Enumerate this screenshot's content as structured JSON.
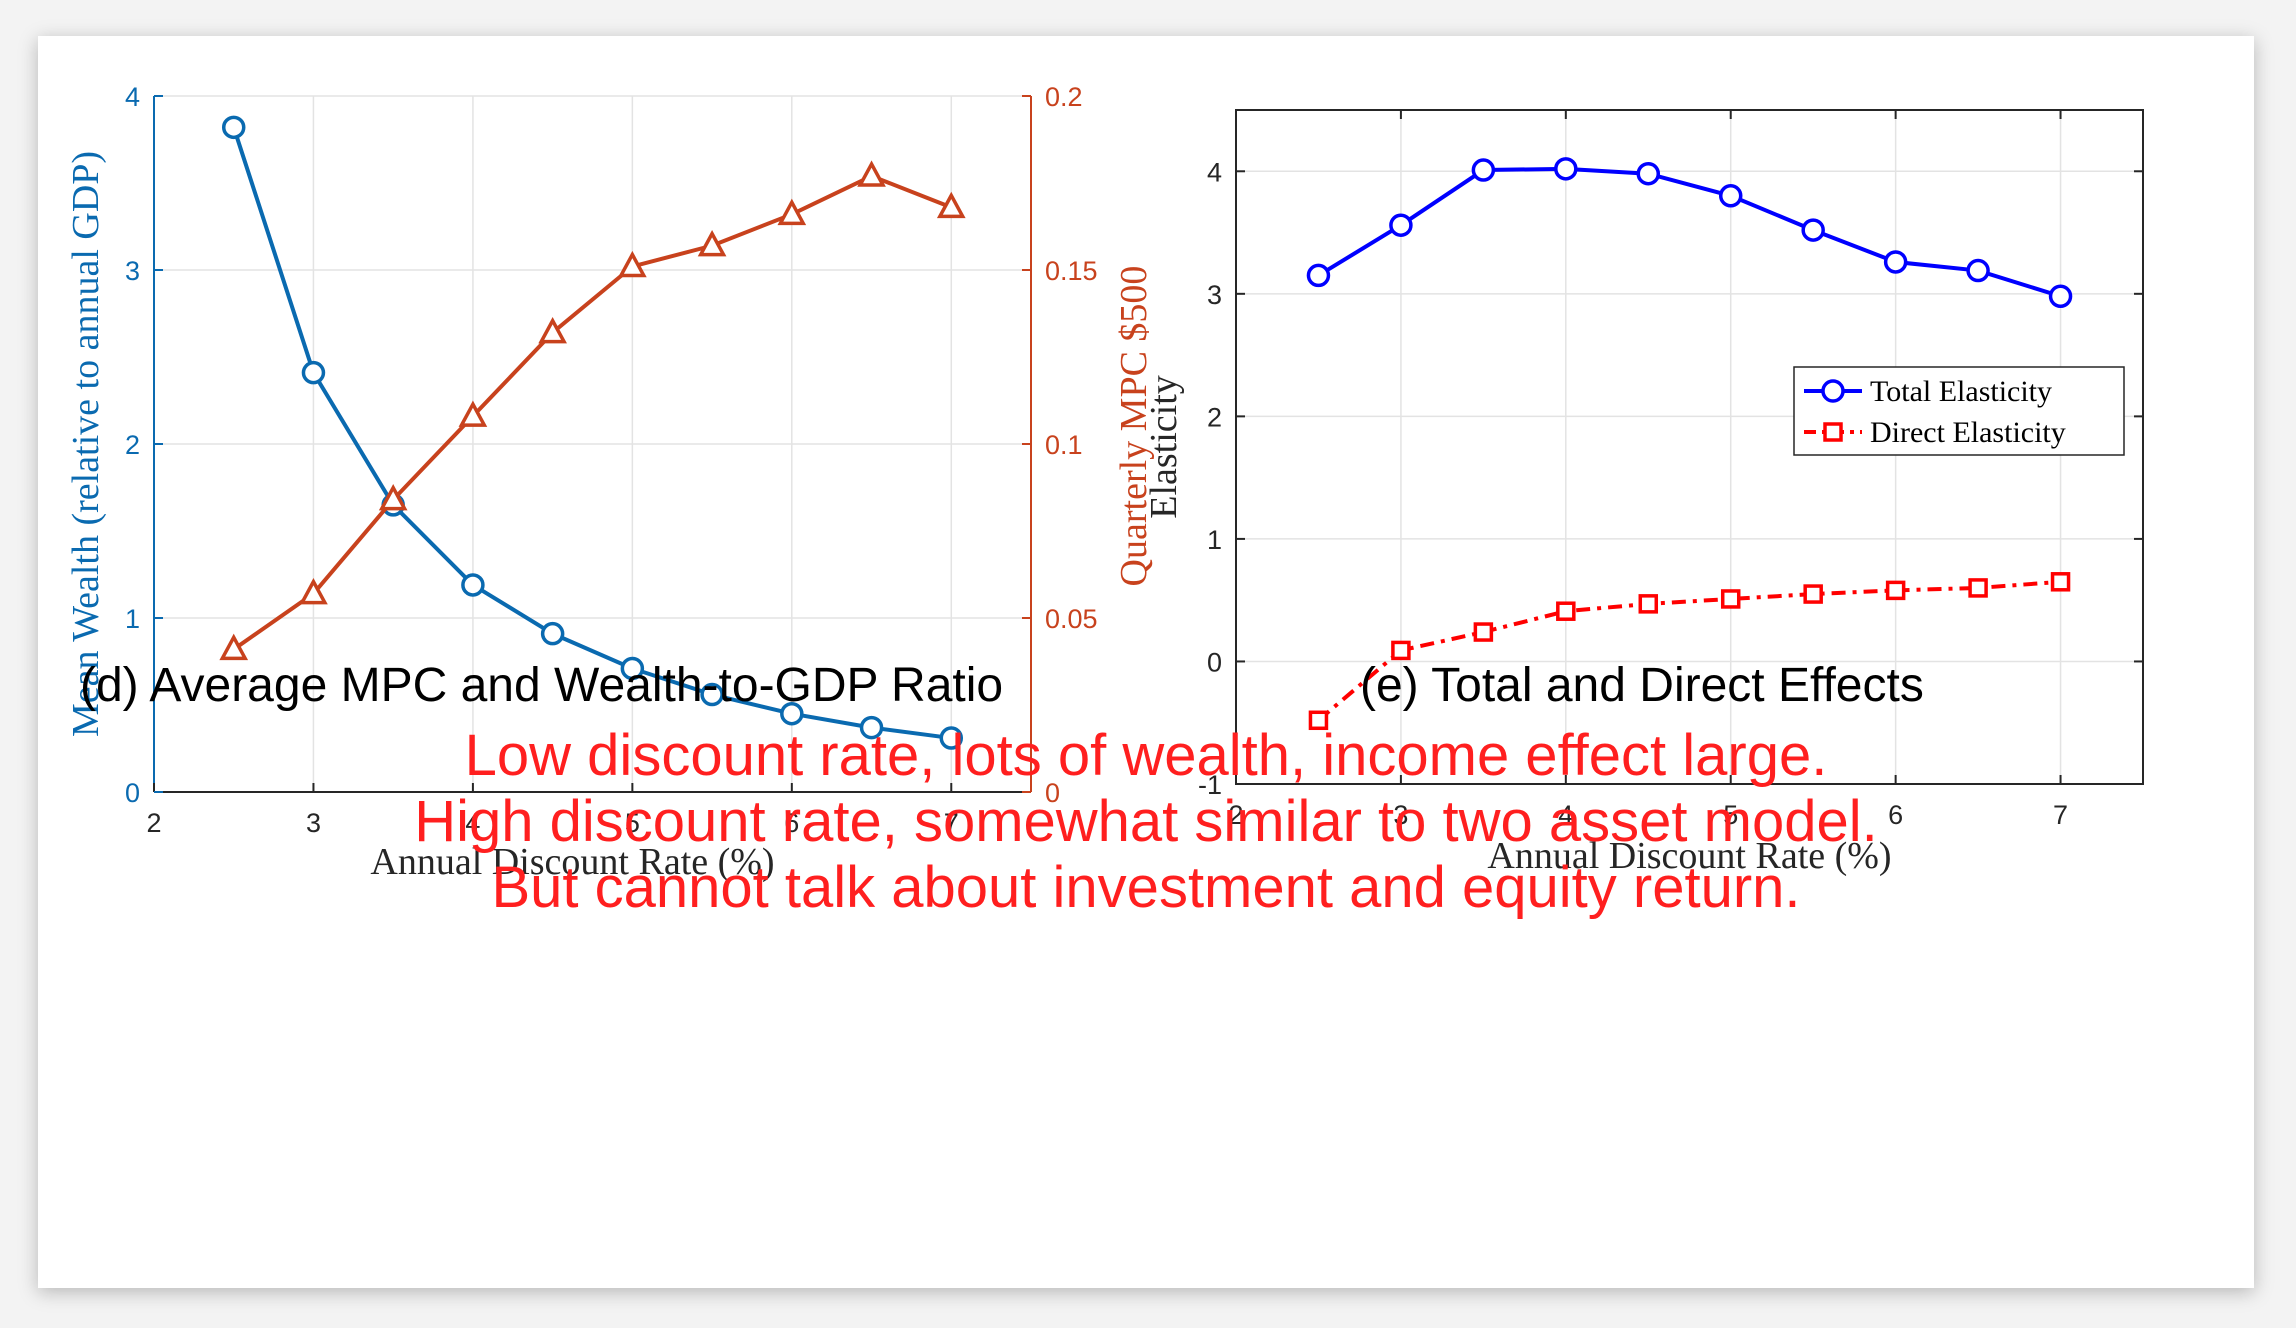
{
  "chart_data": [
    {
      "type": "line",
      "xlabel": "Annual Discount Rate (%)",
      "ylabel_left": "Mean Wealth (relative to annual GDP)",
      "ylabel_right": "Quarterly MPC $500",
      "xlim": [
        2,
        7.5
      ],
      "ylim_left": [
        0,
        4
      ],
      "ylim_right": [
        0,
        0.2
      ],
      "xticks": [
        "2",
        "3",
        "4",
        "5",
        "6",
        "7"
      ],
      "yticks_left": [
        "0",
        "1",
        "2",
        "3",
        "4"
      ],
      "yticks_right": [
        "0",
        "0.05",
        "0.1",
        "0.15",
        "0.2"
      ],
      "grid": true,
      "x": [
        2.5,
        3,
        3.5,
        4,
        4.5,
        5,
        5.5,
        6,
        6.5,
        7
      ],
      "series": [
        {
          "axis": "left",
          "marker": "circle",
          "color": "#0a6ab0",
          "values": [
            3.82,
            2.41,
            1.65,
            1.19,
            0.91,
            0.71,
            0.56,
            0.45,
            0.37,
            0.31
          ]
        },
        {
          "axis": "right",
          "marker": "triangle",
          "color": "#c8421d",
          "values": [
            0.041,
            0.057,
            0.084,
            0.108,
            0.132,
            0.151,
            0.157,
            0.166,
            0.177,
            0.168
          ]
        }
      ]
    },
    {
      "type": "line",
      "xlabel": "Annual Discount Rate (%)",
      "ylabel": "Elasticity",
      "xlim": [
        2,
        7.5
      ],
      "ylim": [
        -1,
        4.5
      ],
      "xticks": [
        "2",
        "3",
        "4",
        "5",
        "6",
        "7"
      ],
      "yticks": [
        "-1",
        "0",
        "1",
        "2",
        "3",
        "4"
      ],
      "grid": true,
      "legend": "center-right",
      "x": [
        2.5,
        3,
        3.5,
        4,
        4.5,
        5,
        5.5,
        6,
        6.5,
        7
      ],
      "series": [
        {
          "name": "Total Elasticity",
          "marker": "circle",
          "color": "#0000ff",
          "dash": "solid",
          "values": [
            3.15,
            3.56,
            4.01,
            4.02,
            3.98,
            3.8,
            3.52,
            3.26,
            3.19,
            2.98
          ]
        },
        {
          "name": "Direct Elasticity",
          "marker": "square",
          "color": "#ff0000",
          "dash": "dashdot",
          "values": [
            -0.48,
            0.09,
            0.24,
            0.41,
            0.47,
            0.51,
            0.55,
            0.58,
            0.6,
            0.65
          ]
        }
      ]
    }
  ],
  "captions": {
    "left": "(d)  Average MPC and Wealth-to-GDP Ratio",
    "right": "(e)  Total and Direct Effects"
  },
  "notes": [
    "Low discount rate, lots of wealth, income effect large.",
    "High discount rate, somewhat similar to two asset model.",
    "But cannot talk about investment and equity return."
  ],
  "colors": {
    "note": "#ff1f1f",
    "left_axis": "#0a6ab0",
    "right_axis": "#c8421d"
  }
}
